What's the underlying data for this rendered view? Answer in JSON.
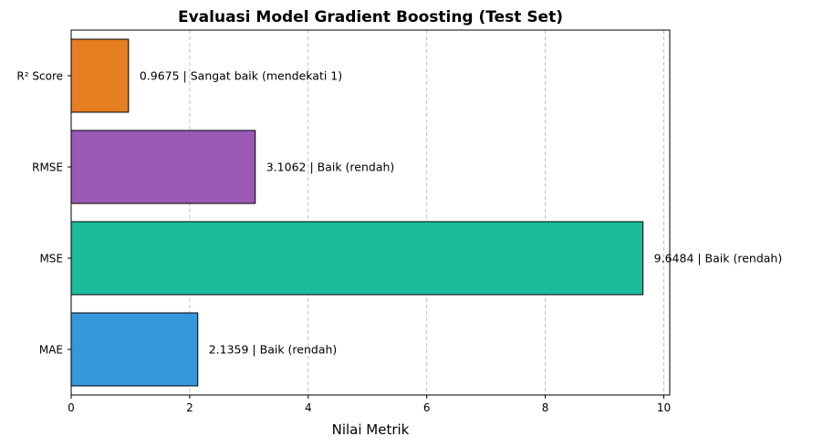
{
  "chart_data": {
    "type": "bar",
    "orientation": "horizontal",
    "title": "Evaluasi Model Gradient Boosting (Test Set)",
    "xlabel": "Nilai Metrik",
    "ylabel": "",
    "xlim": [
      0,
      10.1
    ],
    "xticks": [
      "0",
      "2",
      "4",
      "6",
      "8",
      "10"
    ],
    "grid": "vertical-dashed",
    "categories": [
      "MAE",
      "MSE",
      "RMSE",
      "R² Score"
    ],
    "values": [
      2.1359,
      9.6484,
      3.1062,
      0.9675
    ],
    "colors": [
      "#3498db",
      "#1abc9c",
      "#9b59b6",
      "#e67e22"
    ],
    "labels": [
      "2.1359  |  Baik (rendah)",
      "9.6484  |  Baik (rendah)",
      "3.1062  |  Baik (rendah)",
      "0.9675  |  Sangat baik (mendekati 1)"
    ]
  }
}
